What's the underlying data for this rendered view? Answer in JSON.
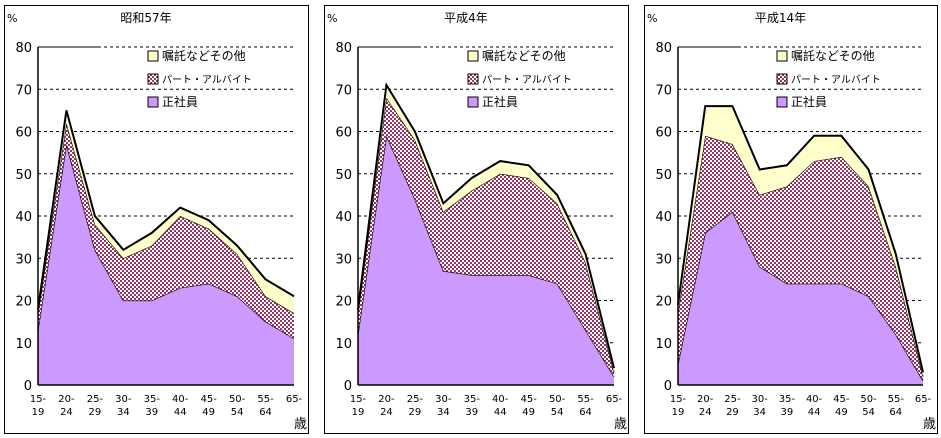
{
  "chart_data": [
    {
      "type": "area",
      "stacked": true,
      "title": "昭和57年",
      "ylabel": "%",
      "xlabel": "歳",
      "ylim": [
        0,
        80
      ],
      "yticks": [
        0,
        10,
        20,
        30,
        40,
        50,
        60,
        70,
        80
      ],
      "grid": true,
      "legend_position": "top-right",
      "categories": [
        "15-19",
        "20-24",
        "25-29",
        "30-34",
        "35-39",
        "40-44",
        "45-49",
        "50-54",
        "55-64",
        "65-"
      ],
      "series": [
        {
          "name": "正社員",
          "values": [
            13,
            57,
            32,
            20,
            20,
            23,
            24,
            21,
            15,
            11
          ]
        },
        {
          "name": "パート・アルバイト",
          "values": [
            4,
            5,
            6,
            10,
            13,
            17,
            13,
            10,
            6,
            6
          ]
        },
        {
          "name": "嘱託などその他",
          "values": [
            1,
            3,
            2,
            2,
            3,
            2,
            2,
            2,
            4,
            4
          ]
        }
      ]
    },
    {
      "type": "area",
      "stacked": true,
      "title": "平成4年",
      "ylabel": "%",
      "xlabel": "歳",
      "ylim": [
        0,
        80
      ],
      "yticks": [
        0,
        10,
        20,
        30,
        40,
        50,
        60,
        70,
        80
      ],
      "grid": true,
      "legend_position": "top-right",
      "categories": [
        "15-19",
        "20-24",
        "25-29",
        "30-34",
        "35-39",
        "40-44",
        "45-49",
        "50-54",
        "55-64",
        "65-"
      ],
      "series": [
        {
          "name": "正社員",
          "values": [
            12,
            59,
            44,
            27,
            26,
            26,
            26,
            24,
            13,
            2
          ]
        },
        {
          "name": "パート・アルバイト",
          "values": [
            5,
            9,
            14,
            14,
            20,
            24,
            23,
            19,
            16,
            1
          ]
        },
        {
          "name": "嘱託などその他",
          "values": [
            1,
            3,
            2,
            2,
            3,
            3,
            3,
            2,
            2,
            1
          ]
        }
      ]
    },
    {
      "type": "area",
      "stacked": true,
      "title": "平成14年",
      "ylabel": "%",
      "xlabel": "歳",
      "ylim": [
        0,
        80
      ],
      "yticks": [
        0,
        10,
        20,
        30,
        40,
        50,
        60,
        70,
        80
      ],
      "grid": true,
      "legend_position": "top-right",
      "categories": [
        "15-19",
        "20-24",
        "25-29",
        "30-34",
        "35-39",
        "40-44",
        "45-49",
        "50-54",
        "55-64",
        "65-"
      ],
      "series": [
        {
          "name": "正社員",
          "values": [
            5,
            36,
            41,
            28,
            24,
            24,
            24,
            21,
            12,
            1
          ]
        },
        {
          "name": "パート・アルバイト",
          "values": [
            12,
            23,
            16,
            17,
            23,
            29,
            30,
            26,
            16,
            1
          ]
        },
        {
          "name": "嘱託などその他",
          "values": [
            2,
            7,
            9,
            6,
            5,
            6,
            5,
            4,
            3,
            1
          ]
        }
      ]
    }
  ],
  "colors": {
    "正社員": "#cc99ff",
    "パート・アルバイト": "#993366",
    "嘱託などその他": "#ffffcc"
  }
}
